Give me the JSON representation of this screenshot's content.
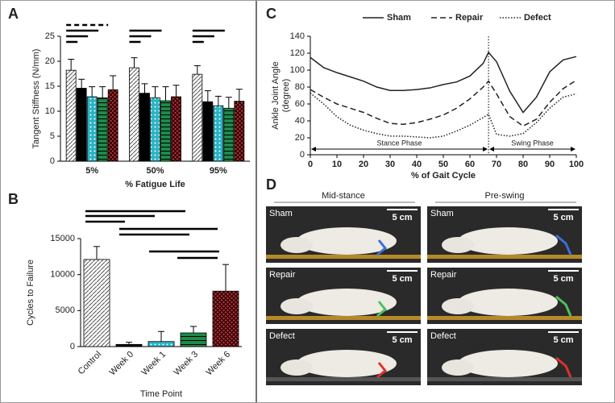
{
  "chart_data": [
    {
      "type": "grouped-bar",
      "panel": "A",
      "ylabel": "Tangent Stiffness (N/mm)",
      "xlabel": "% Fatigue Life",
      "categories": [
        "5%",
        "50%",
        "95%"
      ],
      "ylim": [
        0,
        25
      ],
      "yticks": [
        0,
        5,
        10,
        15,
        20,
        25
      ],
      "series": [
        {
          "color": "#d9d9d9",
          "hatch": "diagonal",
          "values": [
            18.2,
            18.7,
            17.4
          ],
          "errors": [
            2.2,
            2.0,
            1.7
          ]
        },
        {
          "color": "#000000",
          "hatch": "none",
          "values": [
            14.6,
            13.6,
            11.9
          ],
          "errors": [
            1.8,
            1.9,
            2.2
          ]
        },
        {
          "color": "#2bb3c4",
          "hatch": "dots",
          "values": [
            12.9,
            12.7,
            11.1
          ],
          "errors": [
            2.0,
            2.2,
            1.9
          ]
        },
        {
          "color": "#1e8a4a",
          "hatch": "stripes",
          "values": [
            12.7,
            12.1,
            10.6
          ],
          "errors": [
            2.2,
            2.8,
            2.2
          ]
        },
        {
          "color": "#c0282d",
          "hatch": "cross",
          "values": [
            14.3,
            12.9,
            12.0
          ],
          "errors": [
            2.8,
            2.3,
            2.4
          ]
        }
      ]
    },
    {
      "type": "bar",
      "panel": "B",
      "ylabel": "Cycles to Failure",
      "xlabel": "Time Point",
      "categories": [
        "Control",
        "Week 0",
        "Week 1",
        "Week 3",
        "Week 6"
      ],
      "values": [
        12100,
        300,
        700,
        1900,
        7700
      ],
      "errors": [
        1800,
        300,
        1400,
        900,
        3700
      ],
      "colors": [
        "#d9d9d9",
        "#000000",
        "#2bb3c4",
        "#1e8a4a",
        "#c0282d"
      ],
      "hatches": [
        "diagonal",
        "none",
        "dots",
        "stripes",
        "cross"
      ],
      "ylim": [
        0,
        15000
      ],
      "yticks": [
        0,
        5000,
        10000,
        15000
      ]
    },
    {
      "type": "line",
      "panel": "C",
      "ylabel": [
        "Ankle Joint Angle",
        "(degree)"
      ],
      "xlabel": "% of Gait Cycle",
      "x": [
        0,
        5,
        10,
        15,
        20,
        25,
        30,
        35,
        40,
        45,
        50,
        55,
        60,
        65,
        67,
        70,
        75,
        80,
        85,
        90,
        95,
        100
      ],
      "xlim": [
        0,
        100
      ],
      "xticks": [
        0,
        10,
        20,
        30,
        40,
        50,
        60,
        70,
        80,
        90,
        100
      ],
      "ylim": [
        0,
        140
      ],
      "yticks": [
        0,
        20,
        40,
        60,
        80,
        100,
        120,
        140
      ],
      "phase_boundary": 67,
      "annotations": [
        "Stance Phase",
        "Swing Phase"
      ],
      "series": [
        {
          "name": "Sham",
          "color": "#222222",
          "dash": "solid",
          "values": [
            115,
            103,
            97,
            92,
            87,
            80,
            76,
            76,
            77,
            79,
            83,
            86,
            93,
            108,
            121,
            110,
            75,
            50,
            68,
            98,
            112,
            116
          ]
        },
        {
          "name": "Repair",
          "color": "#222222",
          "dash": "dashed",
          "values": [
            77,
            68,
            60,
            55,
            50,
            43,
            37,
            36,
            38,
            42,
            47,
            55,
            66,
            80,
            87,
            72,
            45,
            34,
            42,
            62,
            78,
            88
          ]
        },
        {
          "name": "Defect",
          "color": "#222222",
          "dash": "dotted",
          "values": [
            73,
            60,
            45,
            35,
            29,
            25,
            22,
            22,
            21,
            20,
            22,
            28,
            35,
            44,
            48,
            24,
            22,
            25,
            38,
            55,
            68,
            72
          ]
        }
      ]
    }
  ],
  "photo_panel": {
    "panel": "D",
    "columns": [
      "Mid-stance",
      "Pre-swing"
    ],
    "rows": [
      "Sham",
      "Repair",
      "Defect"
    ],
    "scale_bar": "5 cm"
  }
}
